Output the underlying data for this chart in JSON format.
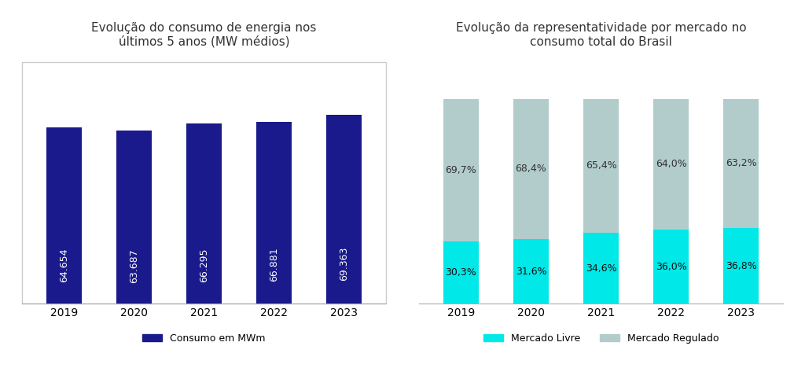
{
  "chart1": {
    "title": "Evolução do consumo de energia nos\núltimos 5 anos (MW médios)",
    "years": [
      "2019",
      "2020",
      "2021",
      "2022",
      "2023"
    ],
    "values": [
      64654,
      63687,
      66295,
      66881,
      69363
    ],
    "labels": [
      "64.654",
      "63.687",
      "66.295",
      "66.881",
      "69.363"
    ],
    "bar_color": "#1a1a8c",
    "legend_label": "Consumo em MWm",
    "bar_width": 0.5
  },
  "chart2": {
    "title": "Evolução da representatividade por mercado no\nconsumo total do Brasil",
    "years": [
      "2019",
      "2020",
      "2021",
      "2022",
      "2023"
    ],
    "livre": [
      30.3,
      31.6,
      34.6,
      36.0,
      36.8
    ],
    "regulado": [
      69.7,
      68.4,
      65.4,
      64.0,
      63.2
    ],
    "livre_labels": [
      "30,3%",
      "31,6%",
      "34,6%",
      "36,0%",
      "36,8%"
    ],
    "regulado_labels": [
      "69,7%",
      "68,4%",
      "65,4%",
      "64,0%",
      "63,2%"
    ],
    "color_livre": "#00e8e8",
    "color_regulado": "#b2cccc",
    "legend_livre": "Mercado Livre",
    "legend_regulado": "Mercado Regulado",
    "bar_width": 0.5
  },
  "bg_color": "#ffffff",
  "title_fontsize": 11,
  "tick_fontsize": 10,
  "label_fontsize": 9,
  "legend_fontsize": 9
}
